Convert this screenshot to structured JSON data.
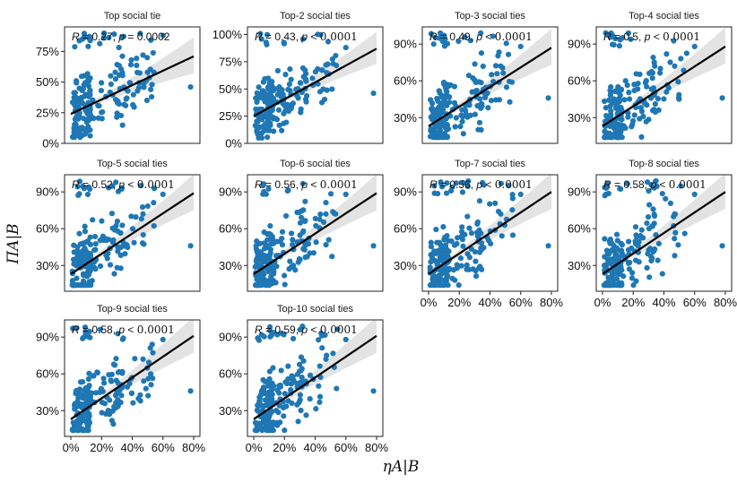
{
  "chart_data": {
    "type": "scatter",
    "layout": "facet-grid-4x3",
    "xlabel": "ηA|B",
    "ylabel": "ΠA|B",
    "xlim": [
      0,
      0.8
    ],
    "x_ticks": [
      0,
      0.2,
      0.4,
      0.6,
      0.8
    ],
    "x_tick_labels": [
      "0%",
      "20%",
      "40%",
      "60%",
      "80%"
    ],
    "regression": "linear fit with 95% confidence band",
    "colors": {
      "point": "#1f77b4",
      "line": "#000000",
      "band": "#d9d9d9"
    },
    "panels": [
      {
        "title": "Top social tie",
        "R": "0.27",
        "p": "0.0002",
        "p_op": "=",
        "ylim": [
          0,
          0.95
        ],
        "y_ticks": [
          0,
          0.25,
          0.5,
          0.75
        ],
        "y_tick_labels": [
          "0%",
          "25%",
          "50%",
          "75%"
        ],
        "fit": [
          0.24,
          0.71
        ]
      },
      {
        "title": "Top-2 social ties",
        "R": "0.43",
        "p": "0.0001",
        "p_op": "<",
        "ylim": [
          0,
          1.07
        ],
        "y_ticks": [
          0,
          0.25,
          0.5,
          0.75,
          1.0
        ],
        "y_tick_labels": [
          "0%",
          "25%",
          "50%",
          "75%",
          "100%"
        ],
        "fit": [
          0.25,
          0.87
        ]
      },
      {
        "title": "Top-3 social ties",
        "R": "0.49",
        "p": "0.0001",
        "p_op": "<",
        "ylim": [
          0.09,
          1.04
        ],
        "y_ticks": [
          0.3,
          0.6,
          0.9
        ],
        "y_tick_labels": [
          "30%",
          "60%",
          "90%"
        ],
        "fit": [
          0.23,
          0.87
        ]
      },
      {
        "title": "Top-4 social ties",
        "R": "0.5",
        "p": "0.0001",
        "p_op": "<",
        "ylim": [
          0.09,
          1.04
        ],
        "y_ticks": [
          0.3,
          0.6,
          0.9
        ],
        "y_tick_labels": [
          "30%",
          "60%",
          "90%"
        ],
        "fit": [
          0.23,
          0.88
        ]
      },
      {
        "title": "Top-5 social ties",
        "R": "0.52",
        "p": "0.0001",
        "p_op": "<",
        "ylim": [
          0.09,
          1.04
        ],
        "y_ticks": [
          0.3,
          0.6,
          0.9
        ],
        "y_tick_labels": [
          "30%",
          "60%",
          "90%"
        ],
        "fit": [
          0.23,
          0.89
        ]
      },
      {
        "title": "Top-6 social ties",
        "R": "0.56",
        "p": "0.0001",
        "p_op": "<",
        "ylim": [
          0.09,
          1.04
        ],
        "y_ticks": [
          0.3,
          0.6,
          0.9
        ],
        "y_tick_labels": [
          "30%",
          "60%",
          "90%"
        ],
        "fit": [
          0.23,
          0.89
        ]
      },
      {
        "title": "Top-7 social ties",
        "R": "0.56",
        "p": "0.0001",
        "p_op": "<",
        "ylim": [
          0.09,
          1.04
        ],
        "y_ticks": [
          0.3,
          0.6,
          0.9
        ],
        "y_tick_labels": [
          "30%",
          "60%",
          "90%"
        ],
        "fit": [
          0.23,
          0.9
        ]
      },
      {
        "title": "Top-8 social ties",
        "R": "0.58",
        "p": "0.0001",
        "p_op": "<",
        "ylim": [
          0.09,
          1.04
        ],
        "y_ticks": [
          0.3,
          0.6,
          0.9
        ],
        "y_tick_labels": [
          "30%",
          "60%",
          "90%"
        ],
        "fit": [
          0.23,
          0.9
        ]
      },
      {
        "title": "Top-9 social ties",
        "R": "0.58",
        "p": "0.0001",
        "p_op": "<",
        "ylim": [
          0.09,
          1.04
        ],
        "y_ticks": [
          0.3,
          0.6,
          0.9
        ],
        "y_tick_labels": [
          "30%",
          "60%",
          "90%"
        ],
        "fit": [
          0.23,
          0.91
        ]
      },
      {
        "title": "Top-10 social ties",
        "R": "0.59",
        "p": "0.0001",
        "p_op": "<",
        "ylim": [
          0.09,
          1.04
        ],
        "y_ticks": [
          0.3,
          0.6,
          0.9
        ],
        "y_tick_labels": [
          "30%",
          "60%",
          "90%"
        ],
        "fit": [
          0.23,
          0.91
        ]
      }
    ]
  }
}
